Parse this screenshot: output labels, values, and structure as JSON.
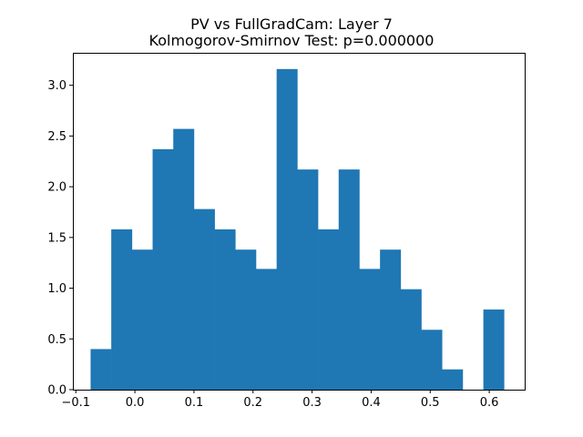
{
  "chart_data": {
    "type": "bar",
    "title_lines": [
      "PV vs FullGradCam: Layer 7",
      "Kolmogorov-Smirnov Test: p=0.000000"
    ],
    "xlabel": "",
    "ylabel": "",
    "xlim": [
      -0.105,
      0.66
    ],
    "ylim": [
      0,
      3.32
    ],
    "xticks": [
      -0.1,
      0.0,
      0.1,
      0.2,
      0.3,
      0.4,
      0.5,
      0.6
    ],
    "xtick_labels": [
      "−0.1",
      "0.0",
      "0.1",
      "0.2",
      "0.3",
      "0.4",
      "0.5",
      "0.6"
    ],
    "yticks": [
      0.0,
      0.5,
      1.0,
      1.5,
      2.0,
      2.5,
      3.0
    ],
    "ytick_labels": [
      "0.0",
      "0.5",
      "1.0",
      "1.5",
      "2.0",
      "2.5",
      "3.0"
    ],
    "bin_edges": [
      -0.075,
      -0.04,
      -0.005,
      0.03,
      0.065,
      0.1,
      0.135,
      0.17,
      0.205,
      0.24,
      0.275,
      0.31,
      0.345,
      0.38,
      0.415,
      0.45,
      0.485,
      0.52,
      0.555,
      0.59,
      0.625
    ],
    "values": [
      0.4,
      1.58,
      1.38,
      2.37,
      2.57,
      1.78,
      1.58,
      1.38,
      1.19,
      3.16,
      2.17,
      1.58,
      2.17,
      1.19,
      1.38,
      0.99,
      0.59,
      0.2,
      0.0,
      0.79
    ],
    "color": "#1f77b4",
    "grid": false,
    "legend": "none"
  }
}
